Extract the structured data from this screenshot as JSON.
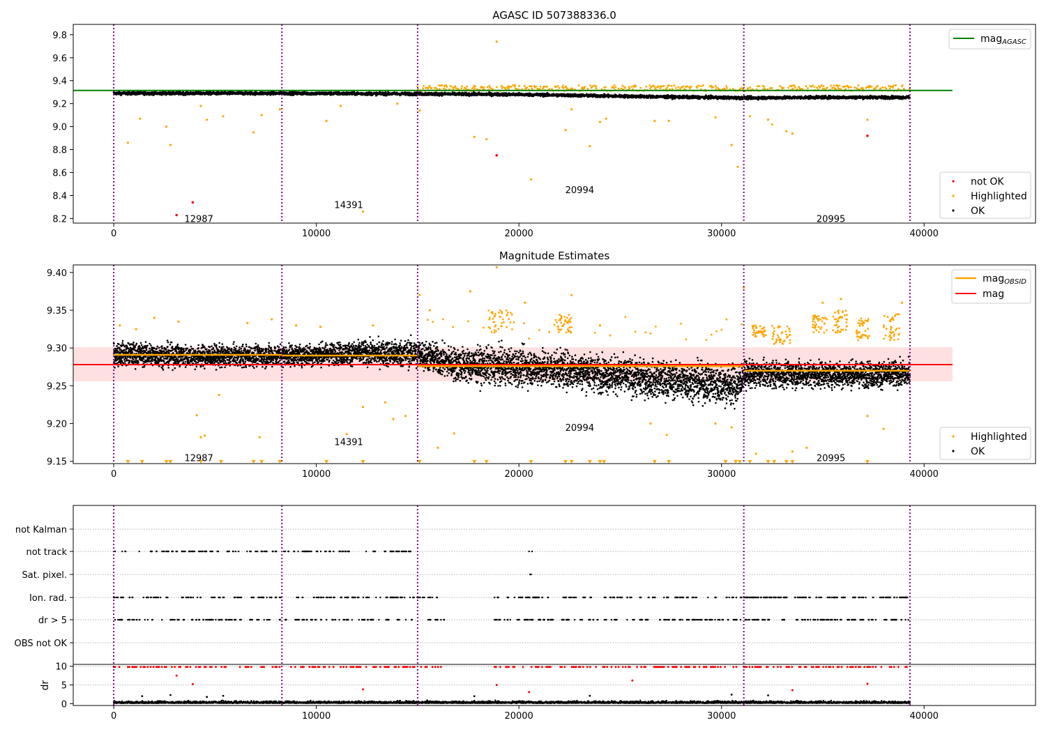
{
  "chart_data": [
    {
      "type": "scatter",
      "title": "AGASC ID 507388336.0",
      "xlim": [
        -2000,
        45500
      ],
      "ylim": [
        8.16,
        9.89
      ],
      "x_ticks": [
        0,
        10000,
        20000,
        30000,
        40000
      ],
      "y_ticks": [
        8.2,
        8.4,
        8.6,
        8.8,
        9.0,
        9.2,
        9.4,
        9.6,
        9.8
      ],
      "obsid_boundaries": [
        0,
        8300,
        15000,
        31100,
        39300
      ],
      "obsid_labels": [
        {
          "text": "12987",
          "x": 4200,
          "y": 8.2
        },
        {
          "text": "14391",
          "x": 11600,
          "y": 8.32
        },
        {
          "text": "20994",
          "x": 23000,
          "y": 8.45
        },
        {
          "text": "20995",
          "x": 35400,
          "y": 8.2
        }
      ],
      "reference_line": {
        "name": "mag_AGASC",
        "value": 9.315,
        "x": [
          -2000,
          41400
        ],
        "color": "#008000"
      },
      "series": [
        {
          "name": "not OK",
          "color": "#ff0000",
          "points": [
            [
              3100,
              8.23
            ],
            [
              3900,
              8.34
            ],
            [
              18900,
              8.75
            ],
            [
              37200,
              8.92
            ]
          ]
        },
        {
          "name": "Highlighted",
          "color": "#ffa500",
          "points": [
            [
              700,
              8.86
            ],
            [
              1300,
              9.07
            ],
            [
              2600,
              9.0
            ],
            [
              2800,
              8.84
            ],
            [
              4300,
              9.18
            ],
            [
              4600,
              9.06
            ],
            [
              5400,
              9.09
            ],
            [
              6900,
              8.95
            ],
            [
              7300,
              9.1
            ],
            [
              8200,
              9.15
            ],
            [
              10500,
              9.05
            ],
            [
              11200,
              9.18
            ],
            [
              12300,
              8.26
            ],
            [
              14000,
              9.2
            ],
            [
              15100,
              9.14
            ],
            [
              17800,
              8.91
            ],
            [
              18400,
              8.89
            ],
            [
              18900,
              9.74
            ],
            [
              20600,
              8.54
            ],
            [
              22300,
              8.97
            ],
            [
              22600,
              9.15
            ],
            [
              23500,
              8.83
            ],
            [
              24000,
              9.04
            ],
            [
              24300,
              9.07
            ],
            [
              26700,
              9.05
            ],
            [
              27400,
              9.05
            ],
            [
              29700,
              9.08
            ],
            [
              30500,
              8.84
            ],
            [
              30800,
              8.65
            ],
            [
              31400,
              9.09
            ],
            [
              32300,
              9.06
            ],
            [
              32500,
              9.02
            ],
            [
              33200,
              8.96
            ],
            [
              33500,
              8.94
            ],
            [
              37200,
              9.06
            ],
            [
              16200,
              9.36
            ],
            [
              19800,
              9.36
            ],
            [
              23800,
              9.35
            ],
            [
              35700,
              9.36
            ],
            [
              38600,
              9.36
            ]
          ]
        },
        {
          "name": "OK",
          "color": "#000000",
          "band": [
            [
              0,
              9.29
            ],
            [
              8300,
              9.29
            ],
            [
              15000,
              9.285
            ],
            [
              20000,
              9.28
            ],
            [
              25000,
              9.265
            ],
            [
              31100,
              9.25
            ],
            [
              35000,
              9.255
            ],
            [
              39300,
              9.255
            ]
          ]
        }
      ],
      "legend_upper": [
        "mag_AGASC"
      ],
      "legend_lower": [
        "not OK",
        "Highlighted",
        "OK"
      ]
    },
    {
      "type": "scatter",
      "title": "Magnitude Estimates",
      "xlim": [
        -2000,
        45500
      ],
      "ylim": [
        9.147,
        9.41
      ],
      "x_ticks": [
        0,
        10000,
        20000,
        30000,
        40000
      ],
      "y_ticks": [
        9.15,
        9.2,
        9.25,
        9.3,
        9.35,
        9.4
      ],
      "obsid_labels": [
        {
          "text": "12987",
          "x": 4200,
          "y": 9.155
        },
        {
          "text": "14391",
          "x": 11600,
          "y": 9.176
        },
        {
          "text": "20994",
          "x": 23000,
          "y": 9.195
        },
        {
          "text": "20995",
          "x": 35400,
          "y": 9.155
        }
      ],
      "mag": {
        "name": "mag",
        "value": 9.278,
        "band": [
          9.256,
          9.301
        ],
        "x": [
          -2000,
          41400
        ],
        "color": "#ff0000"
      },
      "mag_obsid": {
        "name": "mag_OBSID",
        "color": "#ffa500",
        "segments": [
          {
            "x": [
              0,
              8300
            ],
            "value": 9.291
          },
          {
            "x": [
              8300,
              15000
            ],
            "value": 9.29
          },
          {
            "x": [
              15000,
              31100
            ],
            "value": 9.276
          },
          {
            "x": [
              31100,
              39300
            ],
            "value": 9.27
          }
        ]
      },
      "series": [
        {
          "name": "Highlighted",
          "color": "#ffa500",
          "points": [
            [
              300,
              9.33
            ],
            [
              1100,
              9.325
            ],
            [
              2000,
              9.34
            ],
            [
              3200,
              9.335
            ],
            [
              4100,
              9.211
            ],
            [
              4300,
              9.182
            ],
            [
              4500,
              9.184
            ],
            [
              5200,
              9.238
            ],
            [
              6600,
              9.333
            ],
            [
              7200,
              9.182
            ],
            [
              7800,
              9.338
            ],
            [
              9000,
              9.33
            ],
            [
              10200,
              9.328
            ],
            [
              11500,
              9.186
            ],
            [
              12300,
              9.222
            ],
            [
              12800,
              9.33
            ],
            [
              13400,
              9.228
            ],
            [
              13800,
              9.206
            ],
            [
              14400,
              9.21
            ],
            [
              15100,
              9.37
            ],
            [
              15600,
              9.35
            ],
            [
              16000,
              9.168
            ],
            [
              16800,
              9.187
            ],
            [
              17600,
              9.375
            ],
            [
              18900,
              9.407
            ],
            [
              20300,
              9.36
            ],
            [
              22100,
              9.34
            ],
            [
              22600,
              9.37
            ],
            [
              24000,
              9.33
            ],
            [
              26500,
              9.2
            ],
            [
              27300,
              9.185
            ],
            [
              29700,
              9.2
            ],
            [
              30500,
              9.195
            ],
            [
              31100,
              9.38
            ],
            [
              31700,
              9.16
            ],
            [
              33500,
              9.163
            ],
            [
              34200,
              9.168
            ],
            [
              35000,
              9.36
            ],
            [
              35900,
              9.365
            ],
            [
              37200,
              9.21
            ],
            [
              38000,
              9.193
            ],
            [
              38900,
              9.36
            ]
          ],
          "clustered": [
            {
              "x": [
                31500,
                32200
              ],
              "y": [
                9.315,
                9.33
              ]
            },
            {
              "x": [
                32500,
                33400
              ],
              "y": [
                9.305,
                9.33
              ]
            },
            {
              "x": [
                34500,
                35200
              ],
              "y": [
                9.32,
                9.345
              ]
            },
            {
              "x": [
                35500,
                36200
              ],
              "y": [
                9.32,
                9.35
              ]
            },
            {
              "x": [
                36600,
                37300
              ],
              "y": [
                9.31,
                9.34
              ]
            },
            {
              "x": [
                38000,
                38800
              ],
              "y": [
                9.31,
                9.345
              ]
            },
            {
              "x": [
                18500,
                19700
              ],
              "y": [
                9.32,
                9.35
              ]
            },
            {
              "x": [
                21800,
                22600
              ],
              "y": [
                9.32,
                9.345
              ]
            }
          ]
        },
        {
          "name": "OK",
          "color": "#000000",
          "band": [
            [
              0,
              9.27,
              9.315
            ],
            [
              4000,
              9.268,
              9.31
            ],
            [
              8300,
              9.27,
              9.31
            ],
            [
              12000,
              9.272,
              9.315
            ],
            [
              15000,
              9.265,
              9.32
            ],
            [
              17000,
              9.245,
              9.31
            ],
            [
              20000,
              9.24,
              9.31
            ],
            [
              23000,
              9.235,
              9.305
            ],
            [
              26000,
              9.225,
              9.295
            ],
            [
              29000,
              9.22,
              9.29
            ],
            [
              30800,
              9.21,
              9.29
            ],
            [
              31100,
              9.24,
              9.29
            ],
            [
              35000,
              9.24,
              9.29
            ],
            [
              39300,
              9.24,
              9.29
            ]
          ]
        }
      ],
      "legend_upper": [
        "mag_OBSID",
        "mag"
      ],
      "legend_lower": [
        "Highlighted",
        "OK"
      ]
    },
    {
      "type": "scatter",
      "title": "",
      "xlim": [
        -2000,
        45500
      ],
      "x_ticks": [
        0,
        10000,
        20000,
        30000,
        40000
      ],
      "flag_rows": [
        "not Kalman",
        "not track",
        "Sat. pixel.",
        "Ion. rad.",
        "dr > 5",
        "OBS not OK"
      ],
      "flag_events": {
        "not track": [
          [
            0,
            15000
          ],
          [
            20500,
            20650
          ]
        ],
        "Sat. pixel.": [
          [
            20550,
            20600
          ]
        ],
        "Ion. rad.": [
          [
            0,
            15000
          ],
          [
            15100,
            16300
          ],
          [
            18800,
            21000
          ],
          [
            21000,
            31000
          ],
          [
            31100,
            39300
          ]
        ],
        "dr > 5": [
          [
            0,
            15000
          ],
          [
            15100,
            16300
          ],
          [
            18800,
            21000
          ],
          [
            21000,
            31000
          ],
          [
            31100,
            39300
          ]
        ]
      },
      "dr": {
        "ylabel": "dr",
        "ylim": [
          -0.5,
          10.5
        ],
        "y_ticks": [
          0,
          5,
          10
        ],
        "clip": 10,
        "outliers": [
          [
            3100,
            7.5
          ],
          [
            3900,
            5.2
          ],
          [
            12300,
            3.8
          ],
          [
            18900,
            5.0
          ],
          [
            20500,
            3.1
          ],
          [
            25600,
            6.2
          ],
          [
            33500,
            3.6
          ],
          [
            37200,
            5.3
          ]
        ],
        "base_color": "#000000",
        "clip_color": "#ff0000"
      }
    }
  ]
}
